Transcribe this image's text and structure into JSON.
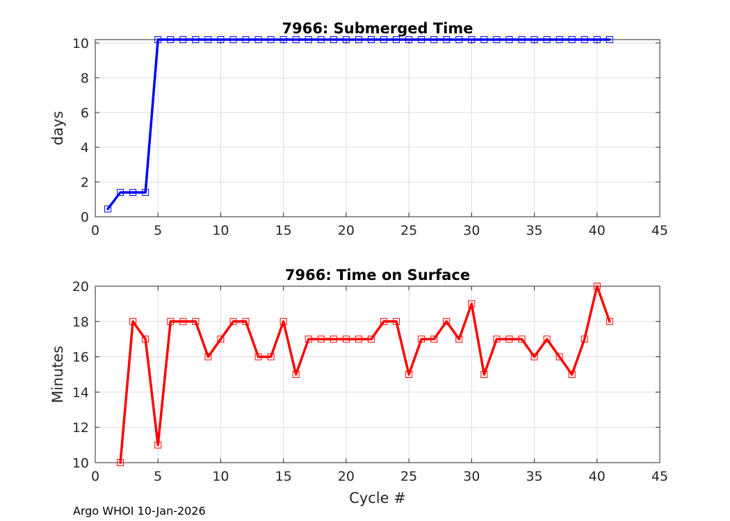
{
  "footer_text": "Argo WHOI 10-Jan-2026",
  "chart_data": [
    {
      "type": "line",
      "title": "7966: Submerged Time",
      "xlabel": "",
      "ylabel": "days",
      "xlim": [
        0,
        45
      ],
      "ylim": [
        0,
        10.2
      ],
      "xticks": [
        0,
        5,
        10,
        15,
        20,
        25,
        30,
        35,
        40,
        45
      ],
      "yticks": [
        0,
        2,
        4,
        6,
        8,
        10
      ],
      "grid": true,
      "color": "#0000ff",
      "marker": "square",
      "x": [
        1,
        2,
        3,
        4,
        5,
        6,
        7,
        8,
        9,
        10,
        11,
        12,
        13,
        14,
        15,
        16,
        17,
        18,
        19,
        20,
        21,
        22,
        23,
        24,
        25,
        26,
        27,
        28,
        29,
        30,
        31,
        32,
        33,
        34,
        35,
        36,
        37,
        38,
        39,
        40,
        41
      ],
      "y": [
        0.45,
        1.4,
        1.4,
        1.4,
        10.2,
        10.2,
        10.2,
        10.2,
        10.2,
        10.2,
        10.2,
        10.2,
        10.2,
        10.2,
        10.2,
        10.2,
        10.2,
        10.2,
        10.2,
        10.2,
        10.2,
        10.2,
        10.2,
        10.2,
        10.2,
        10.2,
        10.2,
        10.2,
        10.2,
        10.2,
        10.2,
        10.2,
        10.2,
        10.2,
        10.2,
        10.2,
        10.2,
        10.2,
        10.2,
        10.2,
        10.2
      ]
    },
    {
      "type": "line",
      "title": "7966: Time on Surface",
      "xlabel": "Cycle #",
      "ylabel": "Minutes",
      "xlim": [
        0,
        45
      ],
      "ylim": [
        10,
        20
      ],
      "xticks": [
        0,
        5,
        10,
        15,
        20,
        25,
        30,
        35,
        40,
        45
      ],
      "yticks": [
        10,
        12,
        14,
        16,
        18,
        20
      ],
      "grid": true,
      "color": "#ff0000",
      "marker": "square",
      "x": [
        2,
        3,
        4,
        5,
        6,
        7,
        8,
        9,
        10,
        11,
        12,
        13,
        14,
        15,
        16,
        17,
        18,
        19,
        20,
        21,
        22,
        23,
        24,
        25,
        26,
        27,
        28,
        29,
        30,
        31,
        32,
        33,
        34,
        35,
        36,
        37,
        38,
        39,
        40,
        41
      ],
      "y": [
        10,
        18,
        17,
        11,
        18,
        18,
        18,
        16,
        17,
        18,
        18,
        16,
        16,
        18,
        15,
        17,
        17,
        17,
        17,
        17,
        17,
        18,
        18,
        15,
        17,
        17,
        18,
        17,
        19,
        15,
        17,
        17,
        17,
        16,
        17,
        16,
        15,
        17,
        20,
        18
      ]
    }
  ]
}
